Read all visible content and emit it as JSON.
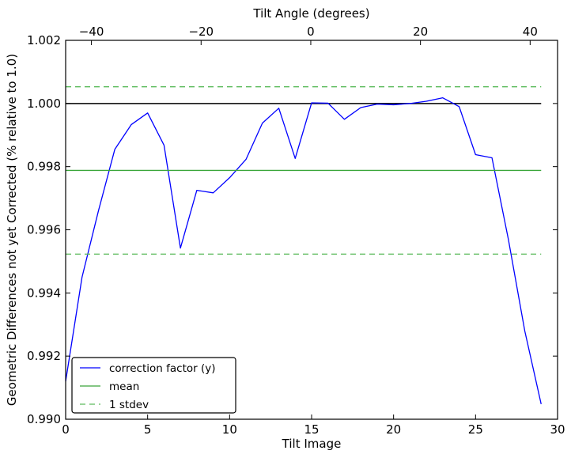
{
  "chart_data": {
    "type": "line",
    "xlabel": "Tilt Image",
    "ylabel": "Geometric Differences not yet Corrected (% relative to 1.0)",
    "top_xlabel": "Tilt Angle (degrees)",
    "xlim": [
      0,
      30
    ],
    "ylim": [
      0.99,
      1.002
    ],
    "top_xlim": [
      -44.7,
      45.0
    ],
    "x_ticks": [
      0,
      5,
      10,
      15,
      20,
      25,
      30
    ],
    "x_tick_labels": [
      "0",
      "5",
      "10",
      "15",
      "20",
      "25",
      "30"
    ],
    "y_ticks": [
      0.99,
      0.992,
      0.994,
      0.996,
      0.998,
      1.0,
      1.002
    ],
    "y_tick_labels": [
      "0.990",
      "0.992",
      "0.994",
      "0.996",
      "0.998",
      "1.000",
      "1.002"
    ],
    "top_ticks": [
      -40,
      -20,
      0,
      20,
      40
    ],
    "top_tick_labels": [
      "−40",
      "−20",
      "0",
      "20",
      "40"
    ],
    "grid": false,
    "legend_position": "lower-left",
    "series": [
      {
        "name": "correction factor (y)",
        "color": "#0000ff",
        "style": "solid",
        "x": [
          0,
          1,
          2,
          3,
          4,
          5,
          6,
          7,
          8,
          9,
          10,
          11,
          12,
          13,
          14,
          15,
          16,
          17,
          18,
          19,
          20,
          21,
          22,
          23,
          24,
          25,
          26,
          27,
          28,
          29
        ],
        "values": [
          0.9912,
          0.9945,
          0.9966,
          0.99855,
          0.99933,
          0.9997,
          0.99868,
          0.99542,
          0.99725,
          0.99717,
          0.99765,
          0.99823,
          0.99938,
          0.99985,
          0.99826,
          1.00002,
          1.00001,
          0.9995,
          0.99987,
          0.99998,
          0.99996,
          1.0,
          1.00007,
          1.00018,
          0.9999,
          0.99838,
          0.99828,
          0.9957,
          0.9928,
          0.99048
        ]
      },
      {
        "name": "mean",
        "color": "#3aa53a",
        "style": "solid",
        "x": [
          0,
          29
        ],
        "values": [
          0.99788,
          0.99788
        ]
      },
      {
        "name": "1 stdev",
        "color": "#5dbb5d",
        "style": "dashed",
        "x": [
          0,
          29,
          0,
          29
        ],
        "values": [
          1.00053,
          1.00053,
          0.99523,
          0.99523
        ]
      }
    ],
    "reference_line": {
      "color": "#000000",
      "x": [
        0,
        29
      ],
      "values": [
        1.0,
        1.0
      ]
    }
  }
}
